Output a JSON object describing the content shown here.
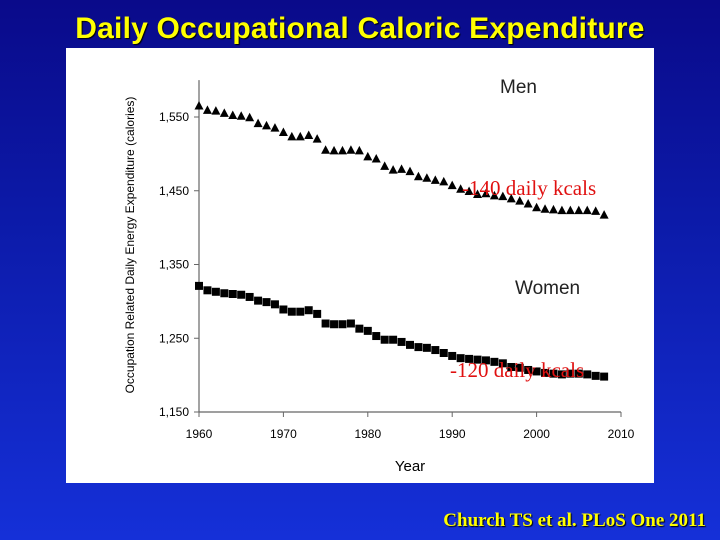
{
  "slide": {
    "title": "Daily Occupational Caloric Expenditure",
    "citation": "Church TS et al. PLoS One 2011"
  },
  "chart_data": {
    "type": "scatter",
    "title": "",
    "xlabel": "Year",
    "ylabel": "Occupation Related Daily Energy Expenditure (calories)",
    "xlim": [
      1960,
      2010
    ],
    "ylim": [
      1150,
      1600
    ],
    "xticks": [
      1960,
      1970,
      1980,
      1990,
      2000,
      2010
    ],
    "xtick_labels": [
      "1960",
      "1970",
      "1980",
      "1990",
      "2000",
      "2010"
    ],
    "yticks": [
      1150,
      1250,
      1350,
      1450,
      1550
    ],
    "ytick_labels": [
      "1,150",
      "1,250",
      "1,350",
      "1,450",
      "1,550"
    ],
    "grid": false,
    "x": [
      1960,
      1961,
      1962,
      1963,
      1964,
      1965,
      1966,
      1967,
      1968,
      1969,
      1970,
      1971,
      1972,
      1973,
      1974,
      1975,
      1976,
      1977,
      1978,
      1979,
      1980,
      1981,
      1982,
      1983,
      1984,
      1985,
      1986,
      1987,
      1988,
      1989,
      1990,
      1991,
      1992,
      1993,
      1994,
      1995,
      1996,
      1997,
      1998,
      1999,
      2000,
      2001,
      2002,
      2003,
      2004,
      2005,
      2006,
      2007,
      2008
    ],
    "series": [
      {
        "name": "Men",
        "marker": "triangle",
        "color": "#000000",
        "values": [
          1565,
          1559,
          1558,
          1555,
          1552,
          1551,
          1549,
          1541,
          1538,
          1535,
          1529,
          1523,
          1523,
          1525,
          1520,
          1505,
          1504,
          1504,
          1505,
          1504,
          1496,
          1493,
          1483,
          1478,
          1479,
          1476,
          1469,
          1467,
          1464,
          1462,
          1457,
          1452,
          1449,
          1445,
          1446,
          1443,
          1442,
          1439,
          1436,
          1432,
          1427,
          1425,
          1424,
          1423,
          1423,
          1423,
          1423,
          1422,
          1417
        ]
      },
      {
        "name": "Women",
        "marker": "square",
        "color": "#000000",
        "values": [
          1321,
          1315,
          1313,
          1311,
          1310,
          1309,
          1306,
          1301,
          1299,
          1296,
          1289,
          1286,
          1286,
          1288,
          1283,
          1270,
          1269,
          1269,
          1270,
          1263,
          1260,
          1253,
          1248,
          1248,
          1245,
          1241,
          1238,
          1237,
          1234,
          1230,
          1226,
          1223,
          1222,
          1221,
          1220,
          1218,
          1216,
          1211,
          1210,
          1207,
          1205,
          1203,
          1202,
          1201,
          1202,
          1202,
          1201,
          1199,
          1198
        ]
      }
    ],
    "annotations": [
      "-140 daily kcals",
      "-120 daily kcals"
    ],
    "annotation_color": "#e01010"
  }
}
